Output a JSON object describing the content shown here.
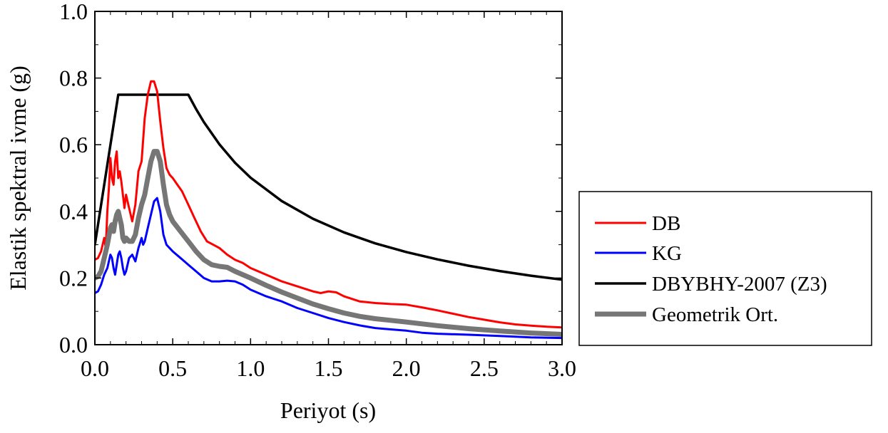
{
  "chart_data": {
    "type": "line",
    "xlabel": "Periyot (s)",
    "ylabel": "Elastik spektral ivme (g)",
    "xlim": [
      0,
      3
    ],
    "ylim": [
      0,
      1
    ],
    "x_ticks": [
      0,
      0.5,
      1,
      1.5,
      2,
      2.5,
      3
    ],
    "x_tick_labels": [
      "0.0",
      "0.5",
      "1.0",
      "1.5",
      "2.0",
      "2.5",
      "3.0"
    ],
    "y_ticks": [
      0,
      0.2,
      0.4,
      0.6,
      0.8,
      1
    ],
    "y_tick_labels": [
      "0.0",
      "0.2",
      "0.4",
      "0.6",
      "0.8",
      "1.0"
    ],
    "grid": false,
    "legend_position": "outside-right",
    "series": [
      {
        "name": "DB",
        "color": "#ff0000",
        "width": "thin",
        "points": [
          [
            0.0,
            0.255
          ],
          [
            0.02,
            0.26
          ],
          [
            0.04,
            0.28
          ],
          [
            0.06,
            0.32
          ],
          [
            0.07,
            0.29
          ],
          [
            0.08,
            0.4
          ],
          [
            0.09,
            0.47
          ],
          [
            0.1,
            0.56
          ],
          [
            0.11,
            0.5
          ],
          [
            0.12,
            0.48
          ],
          [
            0.13,
            0.55
          ],
          [
            0.14,
            0.58
          ],
          [
            0.15,
            0.5
          ],
          [
            0.16,
            0.52
          ],
          [
            0.17,
            0.49
          ],
          [
            0.18,
            0.45
          ],
          [
            0.19,
            0.41
          ],
          [
            0.2,
            0.45
          ],
          [
            0.22,
            0.41
          ],
          [
            0.24,
            0.37
          ],
          [
            0.26,
            0.42
          ],
          [
            0.28,
            0.52
          ],
          [
            0.3,
            0.55
          ],
          [
            0.32,
            0.68
          ],
          [
            0.34,
            0.75
          ],
          [
            0.36,
            0.79
          ],
          [
            0.38,
            0.79
          ],
          [
            0.4,
            0.76
          ],
          [
            0.42,
            0.67
          ],
          [
            0.44,
            0.59
          ],
          [
            0.46,
            0.53
          ],
          [
            0.48,
            0.51
          ],
          [
            0.5,
            0.5
          ],
          [
            0.53,
            0.48
          ],
          [
            0.56,
            0.46
          ],
          [
            0.6,
            0.42
          ],
          [
            0.64,
            0.38
          ],
          [
            0.68,
            0.34
          ],
          [
            0.72,
            0.31
          ],
          [
            0.76,
            0.3
          ],
          [
            0.8,
            0.29
          ],
          [
            0.85,
            0.27
          ],
          [
            0.9,
            0.255
          ],
          [
            0.95,
            0.245
          ],
          [
            1.0,
            0.23
          ],
          [
            1.1,
            0.21
          ],
          [
            1.2,
            0.19
          ],
          [
            1.3,
            0.175
          ],
          [
            1.4,
            0.16
          ],
          [
            1.45,
            0.155
          ],
          [
            1.5,
            0.16
          ],
          [
            1.55,
            0.157
          ],
          [
            1.6,
            0.145
          ],
          [
            1.7,
            0.13
          ],
          [
            1.8,
            0.125
          ],
          [
            1.9,
            0.122
          ],
          [
            2.0,
            0.12
          ],
          [
            2.1,
            0.112
          ],
          [
            2.2,
            0.103
          ],
          [
            2.3,
            0.093
          ],
          [
            2.4,
            0.083
          ],
          [
            2.5,
            0.075
          ],
          [
            2.6,
            0.067
          ],
          [
            2.7,
            0.061
          ],
          [
            2.8,
            0.057
          ],
          [
            2.9,
            0.054
          ],
          [
            3.0,
            0.052
          ]
        ]
      },
      {
        "name": "KG",
        "color": "#0000ff",
        "width": "thin",
        "points": [
          [
            0.0,
            0.155
          ],
          [
            0.02,
            0.16
          ],
          [
            0.04,
            0.18
          ],
          [
            0.06,
            0.21
          ],
          [
            0.08,
            0.23
          ],
          [
            0.1,
            0.27
          ],
          [
            0.11,
            0.26
          ],
          [
            0.12,
            0.23
          ],
          [
            0.13,
            0.21
          ],
          [
            0.14,
            0.24
          ],
          [
            0.15,
            0.27
          ],
          [
            0.16,
            0.28
          ],
          [
            0.17,
            0.26
          ],
          [
            0.18,
            0.23
          ],
          [
            0.19,
            0.21
          ],
          [
            0.2,
            0.22
          ],
          [
            0.22,
            0.26
          ],
          [
            0.24,
            0.27
          ],
          [
            0.26,
            0.25
          ],
          [
            0.28,
            0.29
          ],
          [
            0.3,
            0.32
          ],
          [
            0.31,
            0.3
          ],
          [
            0.32,
            0.31
          ],
          [
            0.34,
            0.35
          ],
          [
            0.36,
            0.39
          ],
          [
            0.38,
            0.43
          ],
          [
            0.4,
            0.44
          ],
          [
            0.42,
            0.4
          ],
          [
            0.44,
            0.33
          ],
          [
            0.46,
            0.3
          ],
          [
            0.48,
            0.29
          ],
          [
            0.5,
            0.28
          ],
          [
            0.55,
            0.26
          ],
          [
            0.6,
            0.24
          ],
          [
            0.65,
            0.22
          ],
          [
            0.7,
            0.2
          ],
          [
            0.75,
            0.19
          ],
          [
            0.8,
            0.19
          ],
          [
            0.85,
            0.192
          ],
          [
            0.9,
            0.19
          ],
          [
            0.95,
            0.18
          ],
          [
            1.0,
            0.165
          ],
          [
            1.1,
            0.145
          ],
          [
            1.2,
            0.13
          ],
          [
            1.3,
            0.11
          ],
          [
            1.4,
            0.095
          ],
          [
            1.5,
            0.08
          ],
          [
            1.6,
            0.068
          ],
          [
            1.7,
            0.058
          ],
          [
            1.8,
            0.05
          ],
          [
            1.9,
            0.046
          ],
          [
            2.0,
            0.042
          ],
          [
            2.1,
            0.036
          ],
          [
            2.2,
            0.033
          ],
          [
            2.4,
            0.03
          ],
          [
            2.6,
            0.026
          ],
          [
            2.8,
            0.022
          ],
          [
            3.0,
            0.02
          ]
        ]
      },
      {
        "name": "DBYBHY-2007 (Z3)",
        "color": "#000000",
        "width": "medium",
        "points": [
          [
            0.0,
            0.3
          ],
          [
            0.15,
            0.75
          ],
          [
            0.6,
            0.75
          ],
          [
            0.65,
            0.707
          ],
          [
            0.7,
            0.668
          ],
          [
            0.8,
            0.601
          ],
          [
            0.9,
            0.546
          ],
          [
            1.0,
            0.501
          ],
          [
            1.2,
            0.431
          ],
          [
            1.4,
            0.378
          ],
          [
            1.6,
            0.337
          ],
          [
            1.8,
            0.304
          ],
          [
            2.0,
            0.278
          ],
          [
            2.2,
            0.256
          ],
          [
            2.4,
            0.237
          ],
          [
            2.6,
            0.221
          ],
          [
            2.8,
            0.207
          ],
          [
            3.0,
            0.195
          ]
        ]
      },
      {
        "name": "Geometrik Ort.",
        "color": "#767676",
        "width": "thick",
        "points": [
          [
            0.0,
            0.2
          ],
          [
            0.02,
            0.205
          ],
          [
            0.04,
            0.22
          ],
          [
            0.06,
            0.26
          ],
          [
            0.08,
            0.3
          ],
          [
            0.1,
            0.35
          ],
          [
            0.11,
            0.36
          ],
          [
            0.12,
            0.34
          ],
          [
            0.13,
            0.37
          ],
          [
            0.14,
            0.39
          ],
          [
            0.15,
            0.4
          ],
          [
            0.16,
            0.38
          ],
          [
            0.17,
            0.36
          ],
          [
            0.18,
            0.32
          ],
          [
            0.19,
            0.31
          ],
          [
            0.2,
            0.32
          ],
          [
            0.22,
            0.31
          ],
          [
            0.24,
            0.31
          ],
          [
            0.26,
            0.33
          ],
          [
            0.28,
            0.38
          ],
          [
            0.3,
            0.42
          ],
          [
            0.32,
            0.45
          ],
          [
            0.34,
            0.5
          ],
          [
            0.36,
            0.55
          ],
          [
            0.38,
            0.58
          ],
          [
            0.4,
            0.58
          ],
          [
            0.42,
            0.55
          ],
          [
            0.44,
            0.48
          ],
          [
            0.46,
            0.42
          ],
          [
            0.48,
            0.39
          ],
          [
            0.5,
            0.37
          ],
          [
            0.55,
            0.34
          ],
          [
            0.6,
            0.31
          ],
          [
            0.65,
            0.28
          ],
          [
            0.7,
            0.255
          ],
          [
            0.75,
            0.24
          ],
          [
            0.8,
            0.235
          ],
          [
            0.85,
            0.232
          ],
          [
            0.9,
            0.22
          ],
          [
            1.0,
            0.2
          ],
          [
            1.1,
            0.178
          ],
          [
            1.2,
            0.158
          ],
          [
            1.3,
            0.14
          ],
          [
            1.4,
            0.122
          ],
          [
            1.5,
            0.108
          ],
          [
            1.6,
            0.095
          ],
          [
            1.7,
            0.085
          ],
          [
            1.8,
            0.078
          ],
          [
            1.9,
            0.073
          ],
          [
            2.0,
            0.068
          ],
          [
            2.2,
            0.057
          ],
          [
            2.4,
            0.048
          ],
          [
            2.6,
            0.041
          ],
          [
            2.8,
            0.035
          ],
          [
            3.0,
            0.031
          ]
        ]
      }
    ]
  }
}
